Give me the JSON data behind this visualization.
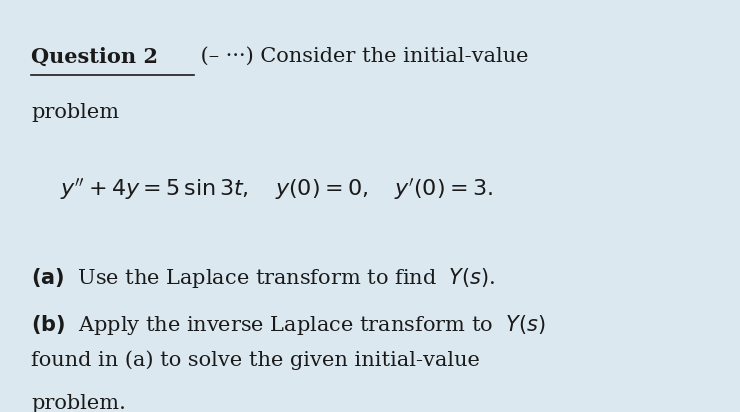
{
  "bg_color": "#dce8f0",
  "text_color": "#1a1a1a",
  "title_bold_underline": "Question 2",
  "title_rest": " (←   →) Consider the initial-value",
  "subtitle": "problem",
  "equation": "$y'' + 4y = 5\\,\\sin 3t, \\quad y(0) = 0, \\quad y'(0) = 3.$",
  "part_a": "(a)  Use the Laplace transform to find  $Y(s)$.",
  "part_b_line1": "(b)  Apply the inverse Laplace transform to  $Y(s)$",
  "part_b_line2": "found in (a) to solve the given initial-value",
  "part_b_line3": "problem.",
  "fontsize_main": 15,
  "fontsize_eq": 16
}
